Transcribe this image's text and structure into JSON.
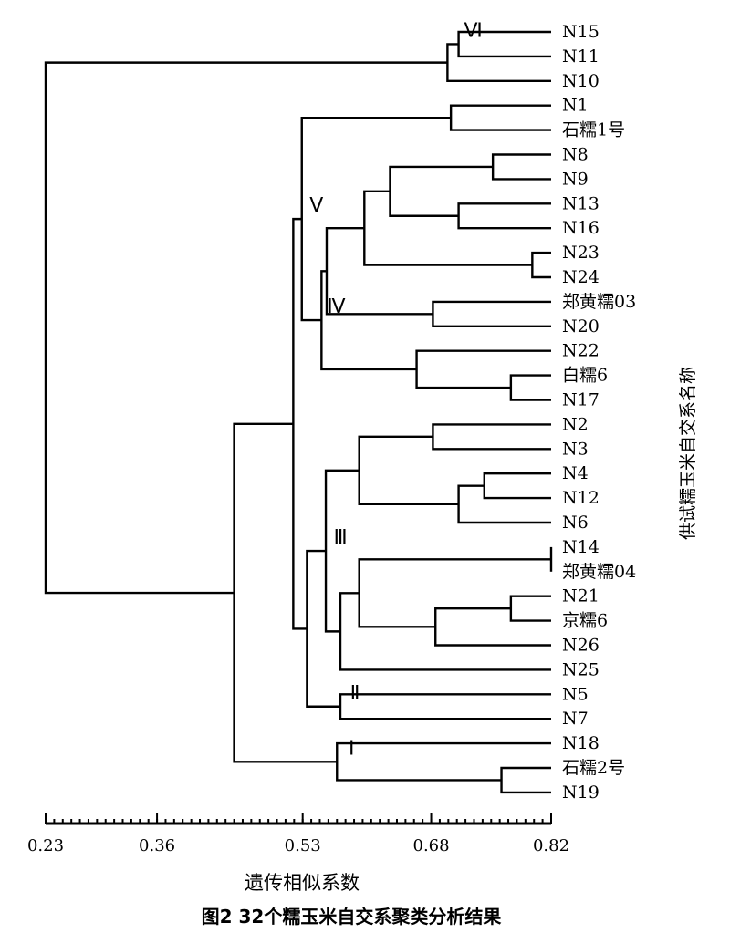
{
  "chart_data": {
    "type": "dendrogram",
    "xlabel": "遗传相似系数",
    "ylabel": "供试糯玉米自交系名称",
    "caption": "图2 32个糯玉米自交系聚类分析结果",
    "xlim": [
      0.23,
      0.82
    ],
    "major_ticks": [
      0.23,
      0.36,
      0.53,
      0.68,
      0.82
    ],
    "major_tick_labels": [
      "0.23",
      "0.36",
      "0.53",
      "0.68",
      "0.82"
    ],
    "minor_tick_step": 0.01,
    "leaves": [
      "N15",
      "N11",
      "N10",
      "N1",
      "石糯1号",
      "N8",
      "N9",
      "N13",
      "N16",
      "N23",
      "N24",
      "郑黄糯03",
      "N20",
      "N22",
      "白糯6",
      "N17",
      "N2",
      "N3",
      "N4",
      "N12",
      "N6",
      "N14",
      "郑黄糯04",
      "N21",
      "京糯6",
      "N26",
      "N25",
      "N5",
      "N7",
      "N18",
      "石糯2号",
      "N19"
    ],
    "merges": [
      {
        "id": "m1",
        "a": "N15",
        "b": "N11",
        "sim": 0.712
      },
      {
        "id": "m2",
        "a": "m1",
        "b": "N10",
        "sim": 0.699
      },
      {
        "id": "m3",
        "a": "N1",
        "b": "石糯1号",
        "sim": 0.703
      },
      {
        "id": "m4",
        "a": "N8",
        "b": "N9",
        "sim": 0.752
      },
      {
        "id": "m5",
        "a": "N13",
        "b": "N16",
        "sim": 0.712
      },
      {
        "id": "m6",
        "a": "m4",
        "b": "m5",
        "sim": 0.632
      },
      {
        "id": "m7",
        "a": "N23",
        "b": "N24",
        "sim": 0.798
      },
      {
        "id": "m8",
        "a": "m6",
        "b": "m7",
        "sim": 0.602
      },
      {
        "id": "m9",
        "a": "郑黄糯03",
        "b": "N20",
        "sim": 0.682
      },
      {
        "id": "m10",
        "a": "m8",
        "b": "m9",
        "sim": 0.558
      },
      {
        "id": "m11",
        "a": "白糯6",
        "b": "N17",
        "sim": 0.773
      },
      {
        "id": "m12",
        "a": "N22",
        "b": "m11",
        "sim": 0.663
      },
      {
        "id": "m13",
        "a": "m10",
        "b": "m12",
        "sim": 0.552
      },
      {
        "id": "m14",
        "a": "m3",
        "b": "m13",
        "sim": 0.529
      },
      {
        "id": "m15",
        "a": "N2",
        "b": "N3",
        "sim": 0.682
      },
      {
        "id": "m16",
        "a": "N4",
        "b": "N12",
        "sim": 0.742
      },
      {
        "id": "m17",
        "a": "m16",
        "b": "N6",
        "sim": 0.712
      },
      {
        "id": "m18",
        "a": "m15",
        "b": "m17",
        "sim": 0.596
      },
      {
        "id": "m19",
        "a": "N14",
        "b": "郑黄糯04",
        "sim": 0.82
      },
      {
        "id": "m20",
        "a": "N21",
        "b": "京糯6",
        "sim": 0.773
      },
      {
        "id": "m21",
        "a": "m20",
        "b": "N26",
        "sim": 0.685
      },
      {
        "id": "m22",
        "a": "m19",
        "b": "m21",
        "sim": 0.596
      },
      {
        "id": "m23",
        "a": "m22",
        "b": "N25",
        "sim": 0.574
      },
      {
        "id": "m24",
        "a": "m18",
        "b": "m23",
        "sim": 0.557
      },
      {
        "id": "m25",
        "a": "N5",
        "b": "N7",
        "sim": 0.574
      },
      {
        "id": "m26",
        "a": "m24",
        "b": "m25",
        "sim": 0.535
      },
      {
        "id": "m27",
        "a": "m14",
        "b": "m26",
        "sim": 0.519
      },
      {
        "id": "m28",
        "a": "石糯2号",
        "b": "N19",
        "sim": 0.762
      },
      {
        "id": "m29",
        "a": "N18",
        "b": "m28",
        "sim": 0.57
      },
      {
        "id": "m30",
        "a": "m27",
        "b": "m29",
        "sim": 0.45
      },
      {
        "id": "m31",
        "a": "m2",
        "b": "m30",
        "sim": 0.23
      }
    ],
    "cluster_labels": [
      {
        "text": "Ⅵ",
        "attach": "m1"
      },
      {
        "text": "Ⅴ",
        "attach": "m14"
      },
      {
        "text": "Ⅳ",
        "attach": "m13"
      },
      {
        "text": "Ⅲ",
        "attach": "m24"
      },
      {
        "text": "Ⅱ",
        "attach": "m25"
      },
      {
        "text": "Ⅰ",
        "attach": "m29"
      }
    ]
  }
}
